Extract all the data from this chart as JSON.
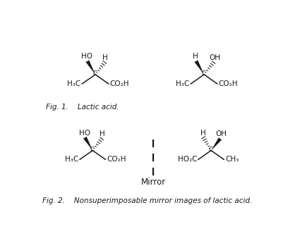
{
  "bg_color": "#ffffff",
  "line_color": "#1a1a1a",
  "fig1_caption": "Fig. 1.    Lactic acid.",
  "fig2_caption": "Fig. 2.    Nonsuperimposable mirror images of lactic acid.",
  "mirror_label": "Mirror",
  "font_size_caption": 7.5,
  "font_size_atom": 7.5,
  "font_size_mirror": 8.5,
  "font_size_C": 6.0
}
